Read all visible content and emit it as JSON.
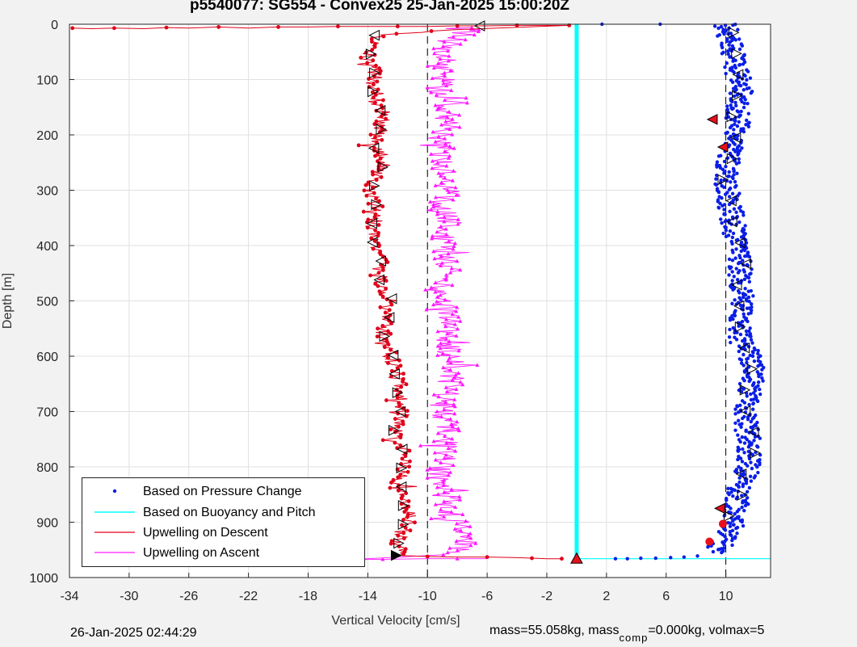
{
  "title": "p5540077: SG554 - Convex25 25-Jan-2025 15:00:20Z",
  "footer": {
    "date": "26-Jan-2025 02:44:29",
    "mass_prefix": "mass=55.058kg, mass",
    "mass_sub": "comp",
    "mass_suffix": "=0.000kg, volmax=5"
  },
  "colors": {
    "pressure": "#0a1ee6",
    "buoyancy": "#00ffff",
    "descent": "#e0001a",
    "ascent": "#ff19ff",
    "grid": "#e0e0e0",
    "plot_bg": "#ffffff"
  },
  "chart_data": {
    "type": "scatter",
    "title": "p5540077: SG554 - Convex25 25-Jan-2025 15:00:20Z",
    "xlabel": "Vertical Velocity [cm/s]",
    "ylabel": "Depth [m]",
    "xlim": [
      -34,
      13
    ],
    "ylim": [
      0,
      1000
    ],
    "y_reversed": true,
    "grid": true,
    "legend_position": "bottom-left",
    "xticks": [
      -34,
      -30,
      -26,
      -22,
      -18,
      -14,
      -10,
      -6,
      -2,
      2,
      6,
      10
    ],
    "yticks": [
      0,
      100,
      200,
      300,
      400,
      500,
      600,
      700,
      800,
      900,
      1000
    ],
    "reference_lines": [
      {
        "x": -10,
        "style": "dashed"
      },
      {
        "x": 10,
        "style": "dashed"
      }
    ],
    "series": [
      {
        "name": "Based on Pressure Change",
        "marker": "dot",
        "profile_x": [
          10.0,
          10.3,
          10.6,
          10.8,
          11.0,
          10.7,
          10.8,
          10.7,
          10.2,
          10.0,
          10.1,
          10.3,
          10.5,
          10.6,
          11.0,
          11.0,
          11.1,
          11.0,
          10.8,
          11.0,
          11.6,
          11.9,
          11.6,
          11.4,
          11.3,
          11.6,
          11.6,
          11.4,
          10.9,
          10.7,
          10.6,
          10.4,
          10.1,
          9.8,
          9.3
        ],
        "profile_depth": [
          0,
          30,
          60,
          90,
          120,
          150,
          180,
          210,
          240,
          270,
          300,
          330,
          360,
          390,
          420,
          450,
          480,
          510,
          540,
          570,
          600,
          630,
          660,
          690,
          720,
          750,
          780,
          810,
          840,
          870,
          890,
          905,
          920,
          935,
          955
        ],
        "surface_points": [
          [
            5.6,
            0
          ],
          [
            1.7,
            0
          ],
          [
            2.6,
            966
          ],
          [
            3.4,
            966
          ],
          [
            4.3,
            965
          ],
          [
            5.3,
            965
          ],
          [
            6.3,
            964
          ],
          [
            7.2,
            963
          ],
          [
            8.1,
            961
          ]
        ]
      },
      {
        "name": "Based on Buoyancy and Pitch",
        "line": [
          [
            0,
            0
          ],
          [
            0,
            966
          ],
          [
            13,
            966
          ]
        ]
      },
      {
        "name": "Upwelling on Descent",
        "marker": "circle-line",
        "profile_x": [
          -6,
          -13.3,
          -13.8,
          -14.0,
          -13.7,
          -13.5,
          -13.8,
          -13.4,
          -13.0,
          -13.0,
          -13.3,
          -13.8,
          -13.0,
          -13.0,
          -13.4,
          -14.0,
          -13.6,
          -13.2,
          -13.6,
          -13.8,
          -13.3,
          -13.0,
          -13.4,
          -13.2,
          -13.0,
          -12.6,
          -12.8,
          -12.8,
          -13.0,
          -12.6,
          -12.5,
          -12.0,
          -11.8,
          -11.7,
          -11.9,
          -12.1,
          -11.8,
          -11.6,
          -11.5,
          -11.8,
          -12.0,
          -11.6,
          -11.1,
          -11.3,
          -11.8,
          -12.0,
          -12.0
        ],
        "profile_depth": [
          5,
          20,
          40,
          60,
          80,
          100,
          120,
          140,
          160,
          180,
          200,
          220,
          240,
          260,
          280,
          300,
          320,
          340,
          360,
          380,
          400,
          420,
          440,
          460,
          480,
          500,
          520,
          540,
          560,
          580,
          600,
          640,
          680,
          700,
          720,
          740,
          760,
          780,
          800,
          820,
          840,
          860,
          880,
          900,
          920,
          940,
          958
        ],
        "surface_trail": [
          [
            -33.8,
            7
          ],
          [
            -32.5,
            8
          ],
          [
            -31.0,
            7
          ],
          [
            -29.0,
            8
          ],
          [
            -27.5,
            6
          ],
          [
            -26.0,
            7
          ],
          [
            -24.0,
            5
          ],
          [
            -22.0,
            7
          ],
          [
            -20.0,
            5
          ],
          [
            -18.0,
            5
          ],
          [
            -16.0,
            4
          ],
          [
            -14.0,
            4
          ],
          [
            -12.0,
            4
          ],
          [
            -10.0,
            4
          ],
          [
            -8.0,
            3
          ],
          [
            -6.0,
            3
          ],
          [
            -4.0,
            2
          ],
          [
            -2.0,
            2
          ],
          [
            -0.5,
            2
          ]
        ],
        "bottom_trail": [
          [
            -12.0,
            960
          ],
          [
            -10.0,
            962
          ],
          [
            -8.0,
            963
          ],
          [
            -6.0,
            963
          ],
          [
            -4.0,
            964
          ],
          [
            -3.0,
            965
          ],
          [
            -2.0,
            966
          ],
          [
            -1.0,
            966
          ]
        ]
      },
      {
        "name": "Upwelling on Ascent",
        "marker": "triangle-line",
        "profile_x": [
          -6.3,
          -8.6,
          -9.0,
          -8.7,
          -9.2,
          -8.8,
          -8.6,
          -8.9,
          -9.1,
          -8.8,
          -8.5,
          -8.9,
          -8.7,
          -9.0,
          -8.8,
          -8.6,
          -8.9,
          -8.7,
          -8.6,
          -8.9,
          -8.5,
          -8.3,
          -8.6,
          -9.0,
          -8.8,
          -8.7,
          -8.9,
          -9.2,
          -9.0,
          -8.6,
          -8.7,
          -8.0,
          -7.6,
          -7.4,
          -7.8,
          -8.4
        ],
        "profile_depth": [
          5,
          30,
          60,
          90,
          120,
          150,
          180,
          210,
          240,
          270,
          300,
          330,
          360,
          390,
          420,
          450,
          480,
          510,
          540,
          570,
          600,
          630,
          660,
          690,
          720,
          750,
          780,
          810,
          840,
          860,
          880,
          900,
          920,
          940,
          955,
          965
        ],
        "bottom_trail": [
          [
            -15.5,
            968
          ],
          [
            -13.0,
            967
          ],
          [
            -10.0,
            966
          ],
          [
            -8.0,
            966
          ],
          [
            -6.0,
            966
          ]
        ]
      }
    ]
  }
}
